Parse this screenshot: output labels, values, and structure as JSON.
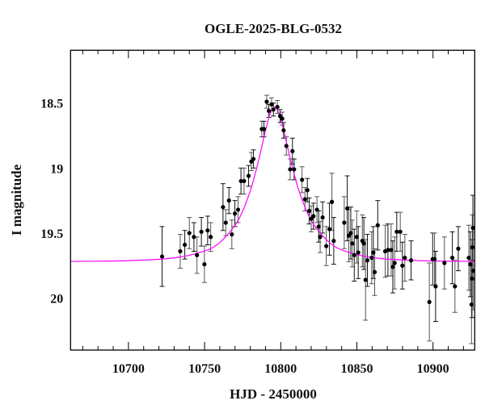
{
  "chart_data": {
    "type": "scatter",
    "title": "OGLE-2025-BLG-0532",
    "xlabel": "HJD - 2450000",
    "ylabel": "I magnitude",
    "xlim": [
      10662,
      10927.4
    ],
    "ylim": [
      20.4,
      18.094
    ],
    "y_inverted": true,
    "grid": false,
    "xticks": [
      10700,
      10750,
      10800,
      10850,
      10900
    ],
    "xtick_labels": [
      "10700",
      "10750",
      "10800",
      "10850",
      "10900"
    ],
    "yticks": [
      18.5,
      19,
      19.5,
      20
    ],
    "ytick_labels": [
      "18.5",
      "19",
      "19.5",
      "20"
    ],
    "colors": {
      "points": "#000000",
      "errorbars": "#555555",
      "model": "#ff00ff",
      "frame": "#000000"
    },
    "series": [
      {
        "kind": "points-with-errorbars",
        "x": [
          10722.1,
          10734.0,
          10737.0,
          10740.0,
          10743.0,
          10745.0,
          10747.9,
          10749.9,
          10752.0,
          10754.0,
          10762.1,
          10763.9,
          10766.0,
          10767.9,
          10769.9,
          10772.0,
          10773.9,
          10775.9,
          10778.9,
          10780.7,
          10782.1,
          10787.6,
          10789.0,
          10790.8,
          10792.2,
          10794.0,
          10795.2,
          10797.8,
          10799.6,
          10801.0,
          10801.9,
          10803.7,
          10807.7,
          10806.2,
          10808.8,
          10814.0,
          10817.5,
          10815.9,
          10818.7,
          10820.0,
          10821.5,
          10823.8,
          10824.9,
          10825.9,
          10827.5,
          10829.9,
          10832.0,
          10833.6,
          10834.8,
          10841.7,
          10843.7,
          10844.7,
          10846.0,
          10847.0,
          10848.3,
          10849.9,
          10850.9,
          10853.6,
          10854.6,
          10855.7,
          10856.9,
          10859.7,
          10860.8,
          10861.7,
          10863.7,
          10868.6,
          10870.4,
          10872.5,
          10873.6,
          10874.8,
          10876.2,
          10878.5,
          10879.9,
          10881.5,
          10885.6,
          10897.6,
          10899.8,
          10901.0,
          10901.7,
          10907.5,
          10912.7,
          10914.4,
          10916.6,
          10923.5,
          10924.5,
          10925.3,
          10925.6,
          10925.8,
          10926.2,
          10926.4
        ],
        "y": [
          19.68,
          19.64,
          19.59,
          19.5,
          19.53,
          19.67,
          19.49,
          19.74,
          19.48,
          19.53,
          19.3,
          19.42,
          19.25,
          19.51,
          19.35,
          19.32,
          19.1,
          19.1,
          19.06,
          18.95,
          18.93,
          18.7,
          18.7,
          18.49,
          18.56,
          18.51,
          18.55,
          18.53,
          18.6,
          18.62,
          18.71,
          18.83,
          18.87,
          19.01,
          19.01,
          19.09,
          19.17,
          19.24,
          19.33,
          19.39,
          19.37,
          19.32,
          19.45,
          19.53,
          19.38,
          19.6,
          19.47,
          19.26,
          19.56,
          19.42,
          19.31,
          19.52,
          19.5,
          19.58,
          19.67,
          19.53,
          19.65,
          19.56,
          19.58,
          19.86,
          19.71,
          19.69,
          19.65,
          19.8,
          19.44,
          19.64,
          19.63,
          19.63,
          19.76,
          19.73,
          19.49,
          19.49,
          19.75,
          19.69,
          19.71,
          20.03,
          19.7,
          19.7,
          19.91,
          19.73,
          19.69,
          19.91,
          19.62,
          19.69,
          19.74,
          20.05,
          19.85,
          19.61,
          19.46,
          19.79
        ],
        "err": [
          0.23,
          0.13,
          0.11,
          0.12,
          0.11,
          0.14,
          0.11,
          0.14,
          0.11,
          0.11,
          0.18,
          0.1,
          0.1,
          0.11,
          0.1,
          0.1,
          0.1,
          0.1,
          0.08,
          0.07,
          0.07,
          0.06,
          0.06,
          0.05,
          0.05,
          0.05,
          0.05,
          0.05,
          0.05,
          0.05,
          0.06,
          0.07,
          0.1,
          0.08,
          0.08,
          0.1,
          0.09,
          0.09,
          0.1,
          0.1,
          0.1,
          0.1,
          0.12,
          0.12,
          0.12,
          0.15,
          0.2,
          0.22,
          0.18,
          0.2,
          0.25,
          0.2,
          0.2,
          0.18,
          0.2,
          0.2,
          0.2,
          0.2,
          0.2,
          0.31,
          0.2,
          0.2,
          0.2,
          0.18,
          0.19,
          0.2,
          0.2,
          0.2,
          0.2,
          0.2,
          0.15,
          0.15,
          0.18,
          0.18,
          0.15,
          0.3,
          0.2,
          0.2,
          0.27,
          0.2,
          0.2,
          0.2,
          0.17,
          0.25,
          0.25,
          0.3,
          0.3,
          0.25,
          0.25,
          0.3
        ]
      },
      {
        "kind": "model-curve",
        "x": [
          10662,
          10700,
          10730,
          10750,
          10760,
          10770,
          10775,
          10780,
          10783,
          10785,
          10788,
          10790,
          10793,
          10796,
          10799,
          10802,
          10804,
          10807,
          10809,
          10812,
          10817,
          10822,
          10832,
          10842,
          10862,
          10892,
          10927.4
        ],
        "y": [
          19.718,
          19.712,
          19.691,
          19.638,
          19.572,
          19.44,
          19.331,
          19.176,
          19.054,
          18.964,
          18.814,
          18.712,
          18.584,
          18.532,
          18.584,
          18.712,
          18.814,
          18.964,
          19.054,
          19.176,
          19.331,
          19.44,
          19.572,
          19.638,
          19.691,
          19.712,
          19.718
        ]
      }
    ]
  }
}
